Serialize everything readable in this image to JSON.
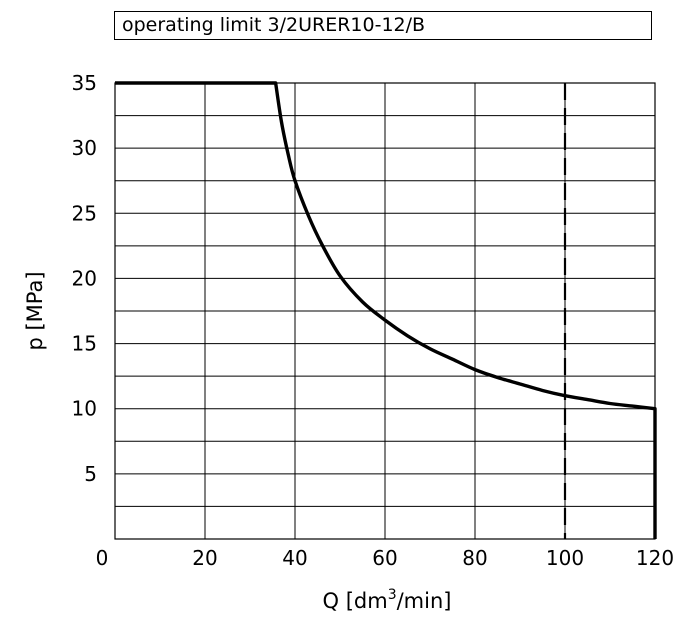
{
  "chart_data": {
    "type": "line",
    "title": "operating limit 3/2URER10-12/B",
    "xlabel": "Q  [dm3/min]",
    "xlabel_parts": {
      "main": "Q  [dm",
      "sup": "3",
      "tail": "/min]"
    },
    "ylabel": "p  [MPa]",
    "xlim": [
      0,
      120
    ],
    "ylim": [
      0,
      35
    ],
    "x_ticks": [
      {
        "value": 0,
        "label": "0"
      },
      {
        "value": 20,
        "label": "20"
      },
      {
        "value": 40,
        "label": "40"
      },
      {
        "value": 60,
        "label": "60"
      },
      {
        "value": 80,
        "label": "80"
      },
      {
        "value": 100,
        "label": "100"
      },
      {
        "value": 120,
        "label": "120"
      }
    ],
    "y_ticks": [
      {
        "value": 5,
        "label": "5"
      },
      {
        "value": 10,
        "label": "10"
      },
      {
        "value": 15,
        "label": "15"
      },
      {
        "value": 20,
        "label": "20"
      },
      {
        "value": 25,
        "label": "25"
      },
      {
        "value": 30,
        "label": "30"
      },
      {
        "value": 35,
        "label": "35"
      }
    ],
    "grid": true,
    "x_grid_step": 20,
    "y_grid_step": 2.5,
    "series": [
      {
        "style": "solid",
        "points": [
          [
            0,
            35
          ],
          [
            35.7,
            35
          ],
          [
            37,
            32
          ],
          [
            38.5,
            29.5
          ],
          [
            40,
            27.5
          ],
          [
            43,
            24.8
          ],
          [
            46,
            22.6
          ],
          [
            50,
            20.2
          ],
          [
            55,
            18.2
          ],
          [
            60,
            16.8
          ],
          [
            65,
            15.6
          ],
          [
            70,
            14.6
          ],
          [
            75,
            13.8
          ],
          [
            80,
            13.0
          ],
          [
            85,
            12.4
          ],
          [
            90,
            11.9
          ],
          [
            95,
            11.4
          ],
          [
            100,
            11.0
          ],
          [
            105,
            10.7
          ],
          [
            110,
            10.4
          ],
          [
            115,
            10.2
          ],
          [
            120,
            10.0
          ],
          [
            120,
            0
          ]
        ]
      }
    ],
    "reference_lines": [
      {
        "orientation": "vertical",
        "x": 100,
        "style": "dashed"
      }
    ]
  }
}
